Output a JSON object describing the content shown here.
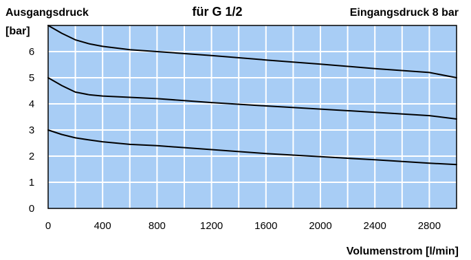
{
  "chart_data": {
    "type": "line",
    "title": "für G 1/2",
    "ylabel_line1": "Ausgangsdruck",
    "ylabel_line2": "[bar]",
    "annotation": "Eingangsdruck 8 bar",
    "xlabel": "Volumenstrom [l/min]",
    "xlim": [
      0,
      3000
    ],
    "ylim": [
      0,
      7
    ],
    "x_ticks": [
      0,
      400,
      800,
      1200,
      1600,
      2000,
      2400,
      2800
    ],
    "y_ticks": [
      0,
      1,
      2,
      3,
      4,
      5,
      6
    ],
    "grid": true,
    "colors": {
      "plot_background": "#a8cdf5",
      "grid": "#ffffff",
      "line": "#000000"
    },
    "series": [
      {
        "x": [
          0,
          100,
          200,
          300,
          400,
          600,
          800,
          1200,
          1600,
          2000,
          2400,
          2800,
          3000
        ],
        "y": [
          7.0,
          6.7,
          6.45,
          6.3,
          6.2,
          6.07,
          6.0,
          5.85,
          5.68,
          5.52,
          5.35,
          5.2,
          5.0
        ]
      },
      {
        "x": [
          0,
          100,
          200,
          300,
          400,
          600,
          800,
          1200,
          1600,
          2000,
          2400,
          2800,
          3000
        ],
        "y": [
          5.0,
          4.7,
          4.45,
          4.35,
          4.3,
          4.25,
          4.2,
          4.05,
          3.92,
          3.8,
          3.68,
          3.55,
          3.42
        ]
      },
      {
        "x": [
          0,
          100,
          200,
          300,
          400,
          600,
          800,
          1200,
          1600,
          2000,
          2400,
          2800,
          3000
        ],
        "y": [
          3.0,
          2.83,
          2.7,
          2.62,
          2.55,
          2.45,
          2.4,
          2.25,
          2.1,
          1.98,
          1.86,
          1.73,
          1.68
        ]
      }
    ]
  }
}
